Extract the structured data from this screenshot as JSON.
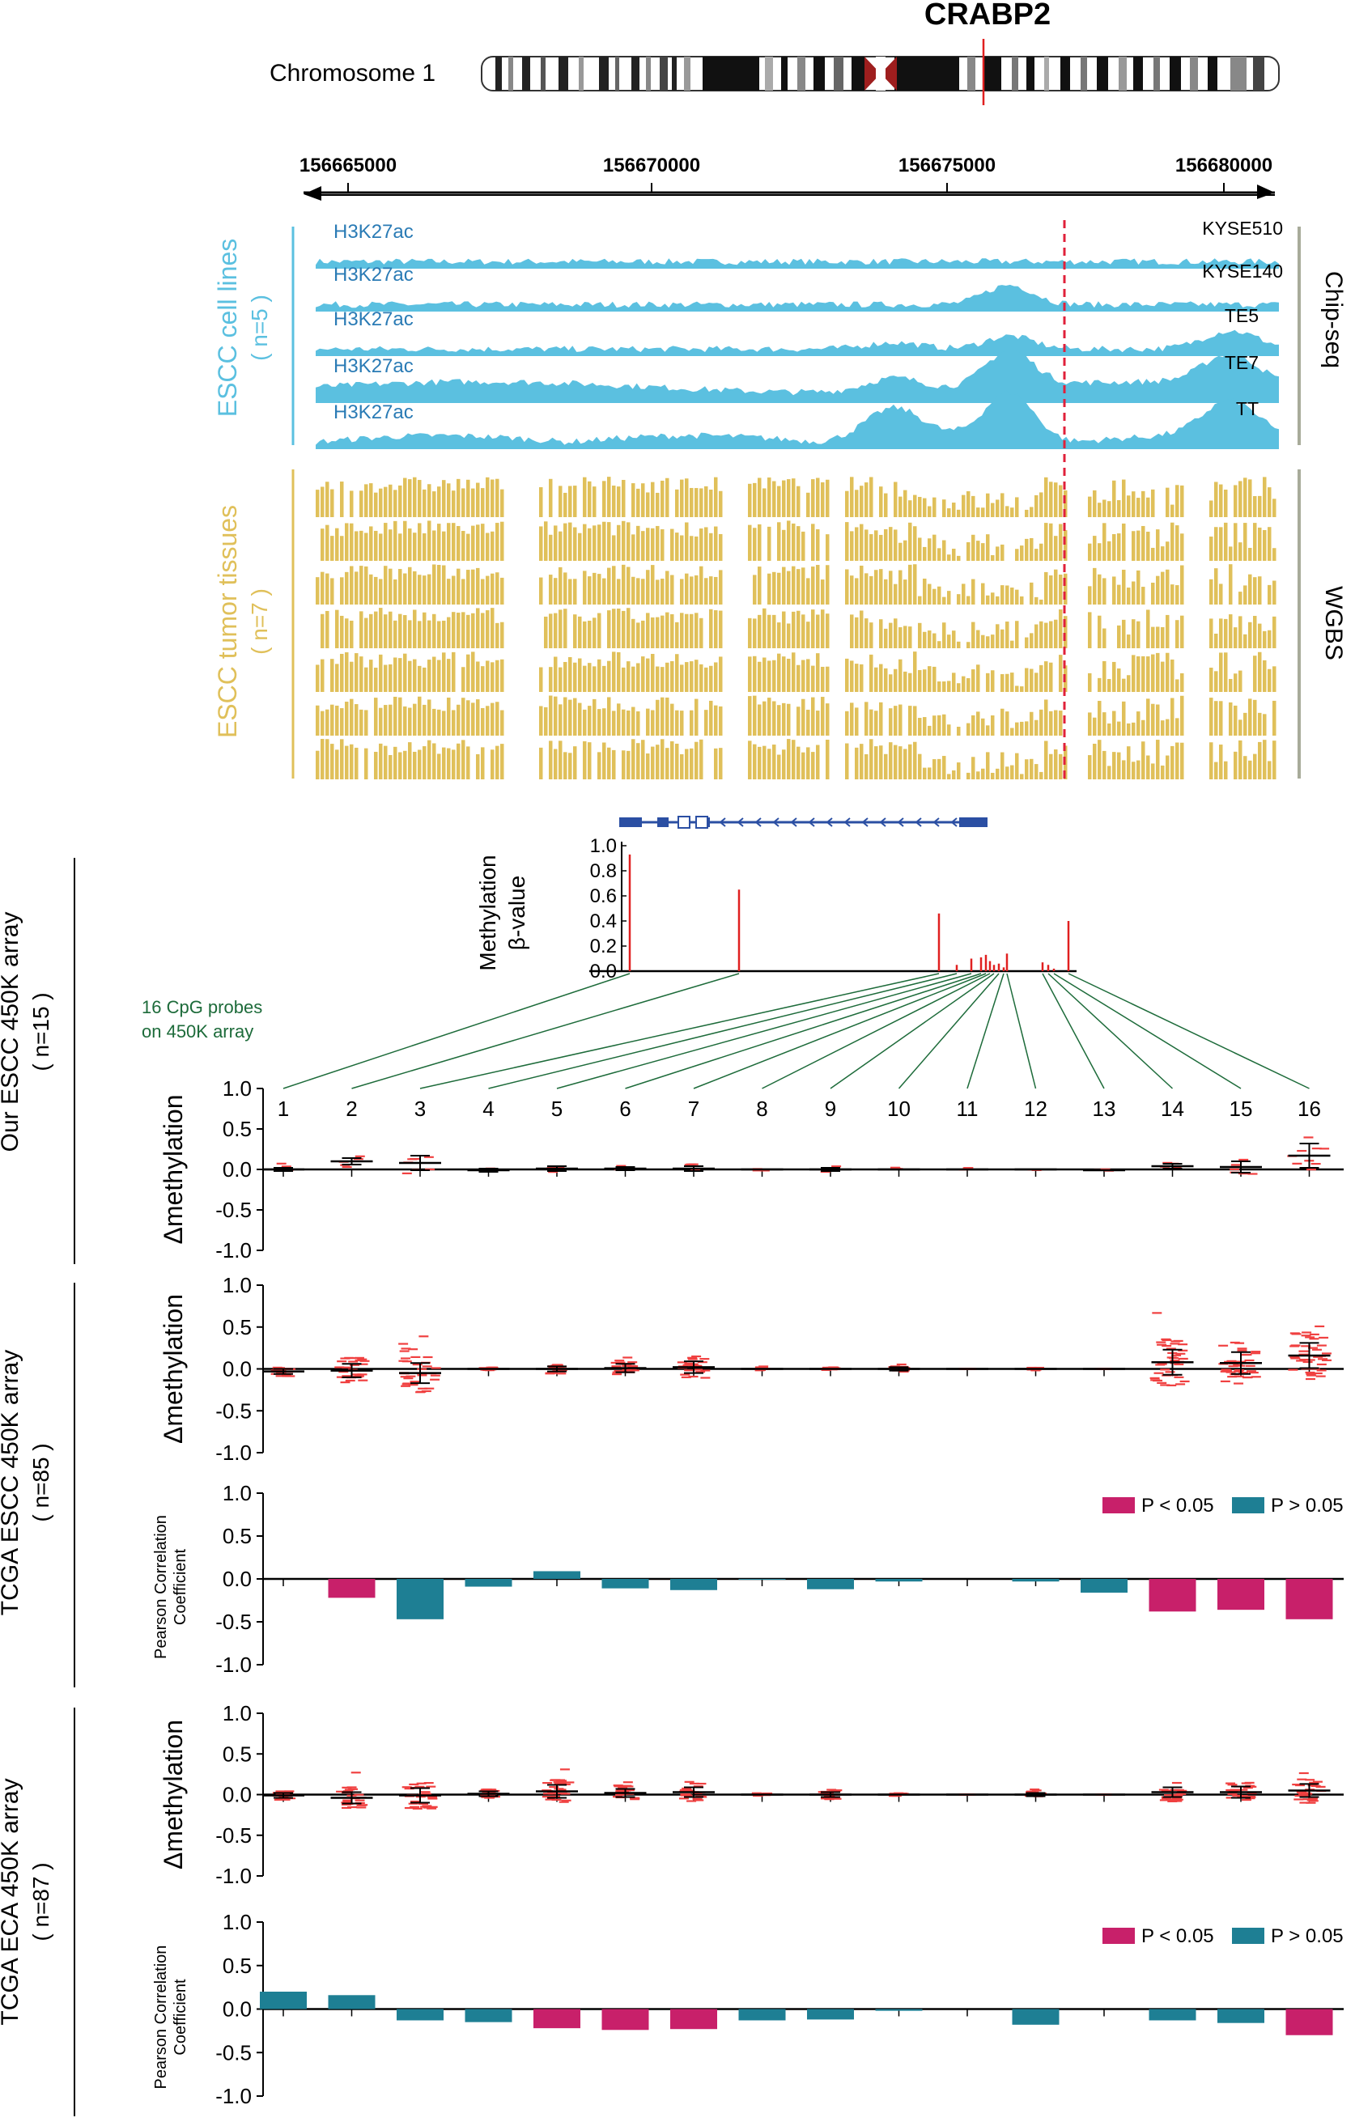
{
  "gene": {
    "name": "CRABP2"
  },
  "chromosome": {
    "label": "Chromosome 1"
  },
  "coordinates": {
    "ticks": [
      "156665000",
      "156670000",
      "156675000",
      "156680000"
    ]
  },
  "chip": {
    "group_label": "ESCC cell lines",
    "group_n": "( n=5 )",
    "assay": "Chip-seq",
    "mark": "H3K27ac",
    "tracks": [
      "KYSE510",
      "KYSE140",
      "TE5",
      "TE7",
      "TT"
    ],
    "color": "#5bc0e0"
  },
  "wgbs": {
    "group_label": "ESCC tumor tissues",
    "group_n": "( n=7 )",
    "assay": "WGBS",
    "n_tracks": 7,
    "color": "#e0c05a"
  },
  "beta_plot": {
    "ylabel": "Methylation",
    "ylabel2": "β-value",
    "yticks": [
      "1.0",
      "0.8",
      "0.6",
      "0.4",
      "0.2",
      "0.0"
    ]
  },
  "probes_note": {
    "line1": "16 CpG probes",
    "line2": "on 450K array"
  },
  "probe_numbers": [
    "1",
    "2",
    "3",
    "4",
    "5",
    "6",
    "7",
    "8",
    "9",
    "10",
    "11",
    "12",
    "13",
    "14",
    "15",
    "16"
  ],
  "delta_yticks": [
    "1.0",
    "0.5",
    "0.0",
    "-0.5",
    "-1.0"
  ],
  "delta_ylabel": "Δmethylation",
  "pearson_ylabel1": "Pearson Correlation",
  "pearson_ylabel2": "Coefficient",
  "legend": {
    "sig": "P < 0.05",
    "nonsig": "P > 0.05",
    "sig_color": "#c8206a",
    "nonsig_color": "#1e7f94"
  },
  "groups": [
    {
      "label": "Our ESCC 450K array",
      "n": "( n=15 )"
    },
    {
      "label": "TCGA ESCC 450K array",
      "n": "( n=85 )"
    },
    {
      "label": "TCGA ECA 450K array",
      "n": "( n=87 )"
    }
  ],
  "chart_data": [
    {
      "type": "bar",
      "title": "",
      "ylabel": "Methylation β-value",
      "ylim": [
        0,
        1
      ],
      "values": [
        0.93,
        0.65,
        0.46,
        0.05,
        0.1,
        0.11,
        0.13,
        0.08,
        0.05,
        0.06,
        0.03,
        0.14,
        0.07,
        0.05,
        0.02,
        0.4
      ]
    },
    {
      "type": "scatter",
      "title": "Our ESCC 450K array",
      "ylabel": "Δmethylation",
      "ylim": [
        -1,
        1
      ],
      "categories": [
        "1",
        "2",
        "3",
        "4",
        "5",
        "6",
        "7",
        "8",
        "9",
        "10",
        "11",
        "12",
        "13",
        "14",
        "15",
        "16"
      ],
      "mean": [
        0.0,
        0.1,
        0.08,
        -0.01,
        0.01,
        0.01,
        0.01,
        0.0,
        0.0,
        0.0,
        0.0,
        0.0,
        -0.01,
        0.04,
        0.03,
        0.17
      ],
      "sd": [
        0.02,
        0.04,
        0.09,
        0.02,
        0.03,
        0.02,
        0.03,
        0.01,
        0.02,
        0.01,
        0.01,
        0.01,
        0.01,
        0.03,
        0.07,
        0.15
      ]
    },
    {
      "type": "scatter",
      "title": "TCGA ESCC 450K array",
      "ylabel": "Δmethylation",
      "ylim": [
        -1,
        1
      ],
      "categories": [
        "1",
        "2",
        "3",
        "4",
        "5",
        "6",
        "7",
        "8",
        "9",
        "10",
        "11",
        "12",
        "13",
        "14",
        "15",
        "16"
      ],
      "mean": [
        -0.03,
        -0.02,
        -0.05,
        0.0,
        0.0,
        0.01,
        0.02,
        0.0,
        0.0,
        0.0,
        0.0,
        0.0,
        0.0,
        0.08,
        0.07,
        0.16
      ],
      "sd": [
        0.03,
        0.08,
        0.12,
        0.01,
        0.03,
        0.05,
        0.07,
        0.01,
        0.01,
        0.02,
        0.0,
        0.01,
        0.0,
        0.15,
        0.13,
        0.15
      ]
    },
    {
      "type": "bar",
      "title": "TCGA ESCC 450K array",
      "ylabel": "Pearson Correlation Coefficient",
      "ylim": [
        -1,
        1
      ],
      "categories": [
        "1",
        "2",
        "3",
        "4",
        "5",
        "6",
        "7",
        "8",
        "9",
        "10",
        "11",
        "12",
        "13",
        "14",
        "15",
        "16"
      ],
      "values": [
        0.0,
        -0.22,
        -0.47,
        -0.09,
        0.09,
        -0.11,
        -0.13,
        -0.01,
        -0.12,
        -0.03,
        0.0,
        -0.03,
        -0.16,
        -0.38,
        -0.36,
        -0.47
      ],
      "significant": [
        false,
        true,
        false,
        false,
        false,
        false,
        false,
        false,
        false,
        false,
        false,
        false,
        false,
        true,
        true,
        true
      ]
    },
    {
      "type": "scatter",
      "title": "TCGA ECA 450K array",
      "ylabel": "Δmethylation",
      "ylim": [
        -1,
        1
      ],
      "categories": [
        "1",
        "2",
        "3",
        "4",
        "5",
        "6",
        "7",
        "8",
        "9",
        "10",
        "11",
        "12",
        "13",
        "14",
        "15",
        "16"
      ],
      "mean": [
        -0.01,
        -0.04,
        -0.01,
        0.01,
        0.04,
        0.02,
        0.03,
        0.0,
        0.0,
        0.0,
        0.0,
        0.0,
        0.0,
        0.03,
        0.03,
        0.05
      ],
      "sd": [
        0.03,
        0.07,
        0.09,
        0.03,
        0.08,
        0.05,
        0.06,
        0.01,
        0.03,
        0.01,
        0.0,
        0.02,
        0.0,
        0.06,
        0.07,
        0.08
      ]
    },
    {
      "type": "bar",
      "title": "TCGA ECA 450K array",
      "ylabel": "Pearson Correlation Coefficient",
      "ylim": [
        -1,
        1
      ],
      "categories": [
        "1",
        "2",
        "3",
        "4",
        "5",
        "6",
        "7",
        "8",
        "9",
        "10",
        "11",
        "12",
        "13",
        "14",
        "15",
        "16"
      ],
      "values": [
        0.2,
        0.16,
        -0.13,
        -0.15,
        -0.22,
        -0.24,
        -0.23,
        -0.13,
        -0.12,
        -0.02,
        0.0,
        -0.18,
        0.0,
        -0.13,
        -0.16,
        -0.3
      ],
      "significant": [
        false,
        false,
        false,
        false,
        true,
        true,
        true,
        false,
        false,
        false,
        false,
        false,
        false,
        false,
        false,
        true
      ]
    }
  ]
}
